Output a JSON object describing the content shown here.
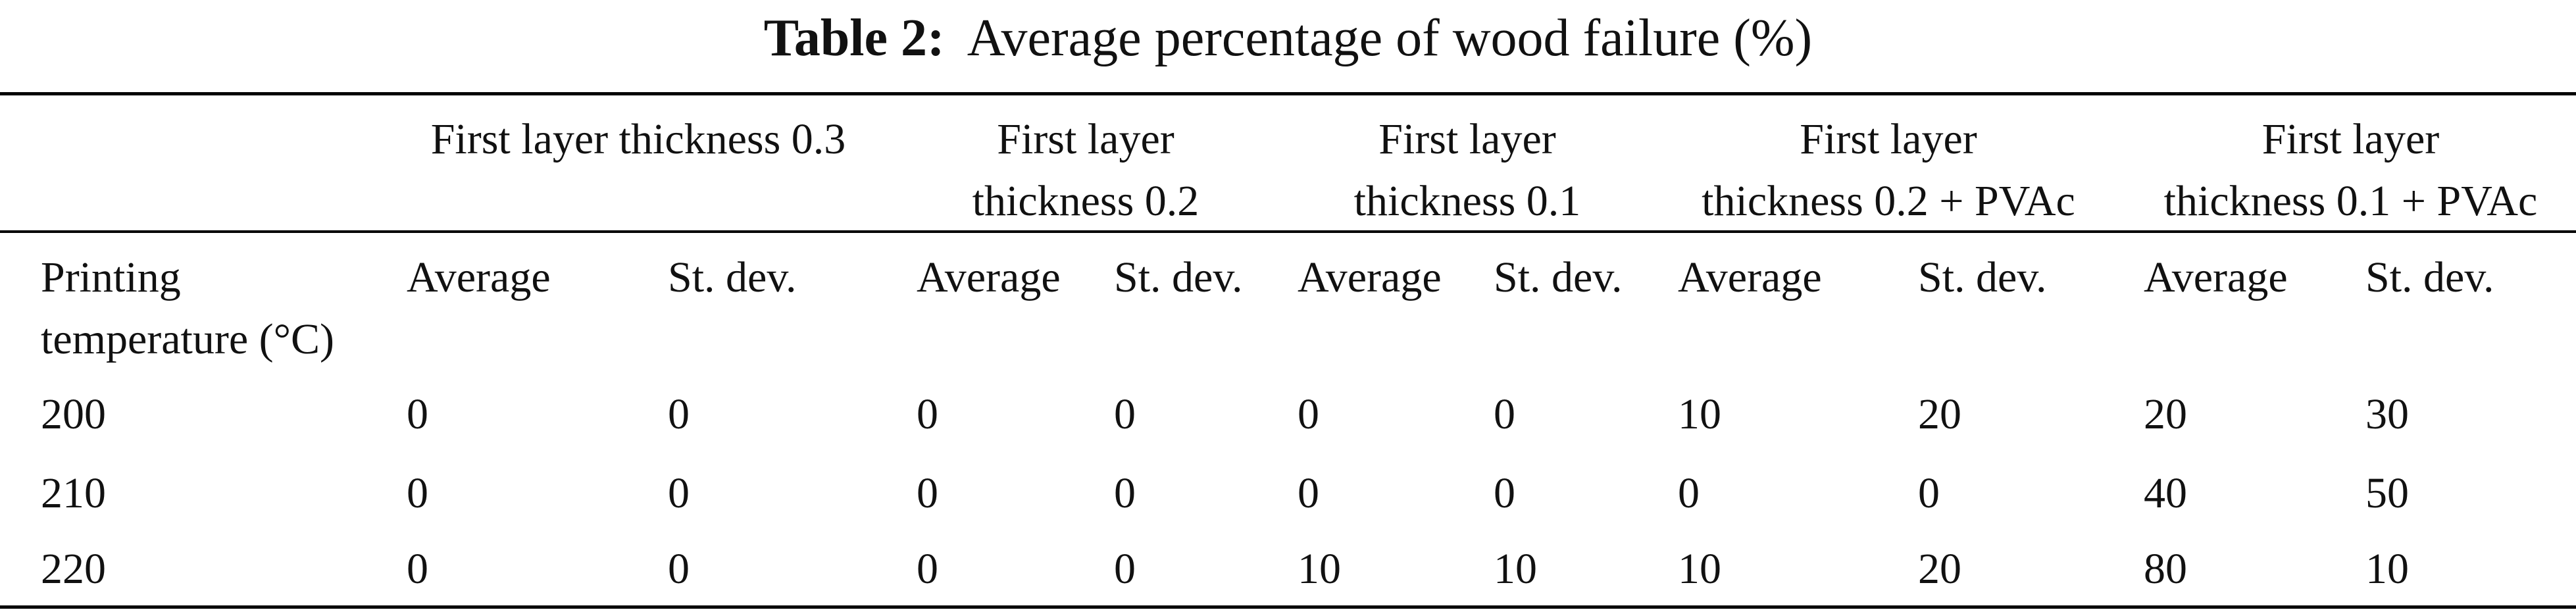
{
  "caption": {
    "label": "Table 2:",
    "text": "Average percentage of wood failure (%)"
  },
  "table": {
    "groups": [
      {
        "line1": "First layer thickness 0.3",
        "line2": ""
      },
      {
        "line1": "First layer",
        "line2": "thickness 0.2"
      },
      {
        "line1": "First layer",
        "line2": "thickness 0.1"
      },
      {
        "line1": "First layer",
        "line2": "thickness 0.2 + PVAc"
      },
      {
        "line1": "First layer",
        "line2": "thickness 0.1 + PVAc"
      }
    ],
    "row_header": {
      "line1": "Printing",
      "line2": "temperature (°C)"
    },
    "subheaders": [
      "Average",
      "St. dev.",
      "Average",
      "St. dev.",
      "Average",
      "St. dev.",
      "Average",
      "St. dev.",
      "Average",
      "St. dev."
    ],
    "rows": [
      {
        "temp": "200",
        "values": [
          "0",
          "0",
          "0",
          "0",
          "0",
          "0",
          "10",
          "20",
          "20",
          "30"
        ]
      },
      {
        "temp": "210",
        "values": [
          "0",
          "0",
          "0",
          "0",
          "0",
          "0",
          "0",
          "0",
          "40",
          "50"
        ]
      },
      {
        "temp": "220",
        "values": [
          "0",
          "0",
          "0",
          "0",
          "10",
          "10",
          "10",
          "20",
          "80",
          "10"
        ]
      }
    ]
  }
}
